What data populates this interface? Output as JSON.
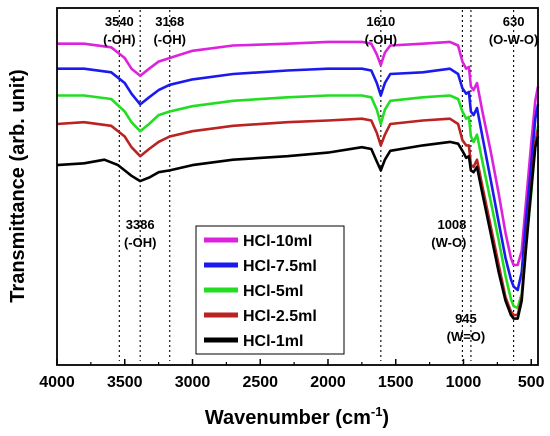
{
  "chart_data": {
    "type": "line",
    "xlabel": "Wavenumber (cm",
    "xlabel_sup": "-1",
    "xlabel_end": ")",
    "ylabel": "Transmittance (arb. unit)",
    "xlim": [
      4000,
      450
    ],
    "x_ticks": [
      "4000",
      "3500",
      "3000",
      "2500",
      "2000",
      "1500",
      "1000",
      "500"
    ],
    "x_tick_values": [
      4000,
      3500,
      3000,
      2500,
      2000,
      1500,
      1000,
      500
    ],
    "legend_position": "bottom-center",
    "series": [
      {
        "name": "HCl-10ml",
        "color": "#dd22dd",
        "baseline": 0.9,
        "points": [
          [
            4000,
            0.9
          ],
          [
            3800,
            0.9
          ],
          [
            3600,
            0.89
          ],
          [
            3500,
            0.86
          ],
          [
            3450,
            0.83
          ],
          [
            3386,
            0.81
          ],
          [
            3320,
            0.83
          ],
          [
            3250,
            0.85
          ],
          [
            3168,
            0.86
          ],
          [
            3000,
            0.88
          ],
          [
            2700,
            0.895
          ],
          [
            2300,
            0.9
          ],
          [
            2000,
            0.905
          ],
          [
            1750,
            0.905
          ],
          [
            1680,
            0.9
          ],
          [
            1640,
            0.87
          ],
          [
            1610,
            0.84
          ],
          [
            1580,
            0.875
          ],
          [
            1540,
            0.895
          ],
          [
            1300,
            0.9
          ],
          [
            1100,
            0.905
          ],
          [
            1040,
            0.895
          ],
          [
            1008,
            0.85
          ],
          [
            980,
            0.83
          ],
          [
            960,
            0.835
          ],
          [
            945,
            0.78
          ],
          [
            925,
            0.77
          ],
          [
            900,
            0.79
          ],
          [
            860,
            0.71
          ],
          [
            800,
            0.6
          ],
          [
            740,
            0.48
          ],
          [
            690,
            0.37
          ],
          [
            650,
            0.3
          ],
          [
            630,
            0.28
          ],
          [
            600,
            0.28
          ],
          [
            570,
            0.32
          ],
          [
            540,
            0.45
          ],
          [
            500,
            0.62
          ],
          [
            470,
            0.74
          ],
          [
            450,
            0.78
          ]
        ]
      },
      {
        "name": "HCl-7.5ml",
        "color": "#1a1aee",
        "baseline": 0.83,
        "points": [
          [
            4000,
            0.83
          ],
          [
            3800,
            0.83
          ],
          [
            3600,
            0.82
          ],
          [
            3500,
            0.79
          ],
          [
            3450,
            0.76
          ],
          [
            3386,
            0.73
          ],
          [
            3320,
            0.75
          ],
          [
            3250,
            0.77
          ],
          [
            3168,
            0.785
          ],
          [
            3000,
            0.8
          ],
          [
            2700,
            0.815
          ],
          [
            2300,
            0.825
          ],
          [
            2000,
            0.83
          ],
          [
            1750,
            0.83
          ],
          [
            1680,
            0.825
          ],
          [
            1640,
            0.79
          ],
          [
            1610,
            0.755
          ],
          [
            1580,
            0.79
          ],
          [
            1540,
            0.815
          ],
          [
            1300,
            0.82
          ],
          [
            1100,
            0.83
          ],
          [
            1040,
            0.815
          ],
          [
            1008,
            0.775
          ],
          [
            980,
            0.76
          ],
          [
            960,
            0.765
          ],
          [
            945,
            0.71
          ],
          [
            925,
            0.7
          ],
          [
            900,
            0.72
          ],
          [
            860,
            0.64
          ],
          [
            800,
            0.52
          ],
          [
            740,
            0.4
          ],
          [
            690,
            0.3
          ],
          [
            650,
            0.24
          ],
          [
            630,
            0.22
          ],
          [
            600,
            0.21
          ],
          [
            570,
            0.26
          ],
          [
            540,
            0.4
          ],
          [
            500,
            0.56
          ],
          [
            470,
            0.69
          ],
          [
            450,
            0.73
          ]
        ]
      },
      {
        "name": "HCl-5ml",
        "color": "#22dd22",
        "baseline": 0.755,
        "points": [
          [
            4000,
            0.755
          ],
          [
            3800,
            0.755
          ],
          [
            3600,
            0.745
          ],
          [
            3500,
            0.71
          ],
          [
            3450,
            0.68
          ],
          [
            3386,
            0.655
          ],
          [
            3320,
            0.675
          ],
          [
            3250,
            0.7
          ],
          [
            3168,
            0.71
          ],
          [
            3000,
            0.725
          ],
          [
            2700,
            0.74
          ],
          [
            2300,
            0.75
          ],
          [
            2000,
            0.755
          ],
          [
            1750,
            0.755
          ],
          [
            1680,
            0.75
          ],
          [
            1640,
            0.715
          ],
          [
            1610,
            0.675
          ],
          [
            1580,
            0.715
          ],
          [
            1540,
            0.74
          ],
          [
            1300,
            0.75
          ],
          [
            1100,
            0.755
          ],
          [
            1040,
            0.745
          ],
          [
            1008,
            0.71
          ],
          [
            980,
            0.69
          ],
          [
            960,
            0.695
          ],
          [
            945,
            0.64
          ],
          [
            925,
            0.625
          ],
          [
            900,
            0.645
          ],
          [
            860,
            0.57
          ],
          [
            800,
            0.46
          ],
          [
            740,
            0.35
          ],
          [
            690,
            0.25
          ],
          [
            650,
            0.185
          ],
          [
            630,
            0.165
          ],
          [
            600,
            0.16
          ],
          [
            570,
            0.2
          ],
          [
            540,
            0.33
          ],
          [
            500,
            0.48
          ],
          [
            470,
            0.62
          ],
          [
            450,
            0.67
          ]
        ]
      },
      {
        "name": "HCl-2.5ml",
        "color": "#bb2222",
        "baseline": 0.675,
        "points": [
          [
            4000,
            0.675
          ],
          [
            3800,
            0.68
          ],
          [
            3600,
            0.67
          ],
          [
            3500,
            0.64
          ],
          [
            3450,
            0.61
          ],
          [
            3386,
            0.585
          ],
          [
            3320,
            0.605
          ],
          [
            3250,
            0.625
          ],
          [
            3168,
            0.64
          ],
          [
            3000,
            0.655
          ],
          [
            2700,
            0.67
          ],
          [
            2300,
            0.68
          ],
          [
            2000,
            0.685
          ],
          [
            1750,
            0.69
          ],
          [
            1680,
            0.685
          ],
          [
            1640,
            0.65
          ],
          [
            1610,
            0.615
          ],
          [
            1580,
            0.645
          ],
          [
            1540,
            0.675
          ],
          [
            1300,
            0.685
          ],
          [
            1100,
            0.69
          ],
          [
            1040,
            0.675
          ],
          [
            1008,
            0.63
          ],
          [
            980,
            0.615
          ],
          [
            960,
            0.615
          ],
          [
            945,
            0.56
          ],
          [
            925,
            0.555
          ],
          [
            900,
            0.575
          ],
          [
            860,
            0.5
          ],
          [
            800,
            0.39
          ],
          [
            740,
            0.28
          ],
          [
            690,
            0.19
          ],
          [
            650,
            0.15
          ],
          [
            630,
            0.14
          ],
          [
            600,
            0.14
          ],
          [
            570,
            0.19
          ],
          [
            540,
            0.33
          ],
          [
            500,
            0.5
          ],
          [
            470,
            0.62
          ],
          [
            450,
            0.66
          ]
        ]
      },
      {
        "name": "HCl-1ml",
        "color": "#000000",
        "baseline": 0.56,
        "points": [
          [
            4000,
            0.56
          ],
          [
            3800,
            0.565
          ],
          [
            3650,
            0.575
          ],
          [
            3550,
            0.56
          ],
          [
            3450,
            0.53
          ],
          [
            3386,
            0.515
          ],
          [
            3320,
            0.525
          ],
          [
            3250,
            0.54
          ],
          [
            3168,
            0.545
          ],
          [
            3000,
            0.56
          ],
          [
            2700,
            0.575
          ],
          [
            2300,
            0.585
          ],
          [
            2000,
            0.595
          ],
          [
            1750,
            0.61
          ],
          [
            1680,
            0.605
          ],
          [
            1640,
            0.57
          ],
          [
            1610,
            0.545
          ],
          [
            1580,
            0.575
          ],
          [
            1540,
            0.6
          ],
          [
            1300,
            0.615
          ],
          [
            1100,
            0.625
          ],
          [
            1040,
            0.62
          ],
          [
            1008,
            0.6
          ],
          [
            980,
            0.58
          ],
          [
            960,
            0.585
          ],
          [
            945,
            0.545
          ],
          [
            925,
            0.54
          ],
          [
            900,
            0.555
          ],
          [
            860,
            0.48
          ],
          [
            800,
            0.37
          ],
          [
            740,
            0.26
          ],
          [
            690,
            0.18
          ],
          [
            650,
            0.14
          ],
          [
            630,
            0.13
          ],
          [
            600,
            0.13
          ],
          [
            570,
            0.18
          ],
          [
            540,
            0.32
          ],
          [
            500,
            0.49
          ],
          [
            470,
            0.61
          ],
          [
            450,
            0.64
          ]
        ]
      }
    ],
    "reference_lines": [
      3540,
      3386,
      3168,
      1610,
      1008,
      945,
      630
    ],
    "annotations": [
      {
        "id": "a3540",
        "x": 3540,
        "line1": "3540",
        "line2": "(-OH)",
        "pos": "top"
      },
      {
        "id": "a3168",
        "x": 3168,
        "line1": "3168",
        "line2": "(-OH)",
        "pos": "top"
      },
      {
        "id": "a1610",
        "x": 1610,
        "line1": "1610",
        "line2": "(-OH)",
        "pos": "top"
      },
      {
        "id": "a630",
        "x": 630,
        "line1": "630",
        "line2": "(O-W-O)",
        "pos": "top"
      },
      {
        "id": "a3386",
        "x": 3386,
        "line1": "3386",
        "line2": "(-OH)",
        "pos": "mid"
      },
      {
        "id": "a1008",
        "x": 1008,
        "line1": "1008",
        "line2": "(W-O)",
        "pos": "mid"
      },
      {
        "id": "a945",
        "x": 945,
        "line1": "945",
        "line2": "(W=O)",
        "pos": "low"
      }
    ]
  }
}
